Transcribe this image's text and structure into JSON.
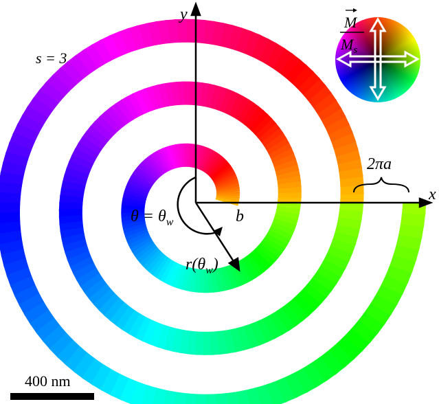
{
  "labels": {
    "y_axis": "y",
    "x_axis": "x",
    "s": "s = 3",
    "m_num": "M",
    "m_den": "M",
    "m_den_sub": "s",
    "two_pi_a": "2πa",
    "b": "b",
    "theta": "θ = θ",
    "theta_sub": "w",
    "r": "r(θ",
    "r_sub": "w",
    "r_close": ")",
    "scale": "400 nm"
  }
}
